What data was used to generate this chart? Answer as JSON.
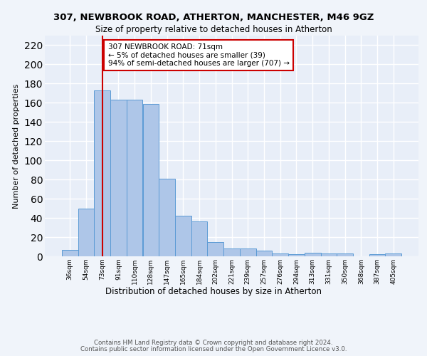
{
  "title1": "307, NEWBROOK ROAD, ATHERTON, MANCHESTER, M46 9GZ",
  "title2": "Size of property relative to detached houses in Atherton",
  "xlabel": "Distribution of detached houses by size in Atherton",
  "ylabel": "Number of detached properties",
  "footer1": "Contains HM Land Registry data © Crown copyright and database right 2024.",
  "footer2": "Contains public sector information licensed under the Open Government Licence v3.0.",
  "categories": [
    "36sqm",
    "54sqm",
    "73sqm",
    "91sqm",
    "110sqm",
    "128sqm",
    "147sqm",
    "165sqm",
    "184sqm",
    "202sqm",
    "221sqm",
    "239sqm",
    "257sqm",
    "276sqm",
    "294sqm",
    "313sqm",
    "331sqm",
    "350sqm",
    "368sqm",
    "387sqm",
    "405sqm"
  ],
  "values": [
    7,
    50,
    173,
    163,
    163,
    159,
    81,
    42,
    36,
    15,
    8,
    8,
    6,
    3,
    2,
    4,
    3,
    3,
    0,
    2,
    3
  ],
  "bar_color": "#aec6e8",
  "bar_edge_color": "#5b9bd5",
  "vline_x": 2,
  "vline_color": "#cc0000",
  "annotation_text": "307 NEWBROOK ROAD: 71sqm\n← 5% of detached houses are smaller (39)\n94% of semi-detached houses are larger (707) →",
  "annotation_box_color": "#ffffff",
  "annotation_box_edge_color": "#cc0000",
  "ylim": [
    0,
    230
  ],
  "background_color": "#e8eef8",
  "fig_background_color": "#f0f4fa",
  "grid_color": "#ffffff",
  "yticks": [
    0,
    20,
    40,
    60,
    80,
    100,
    120,
    140,
    160,
    180,
    200,
    220
  ]
}
